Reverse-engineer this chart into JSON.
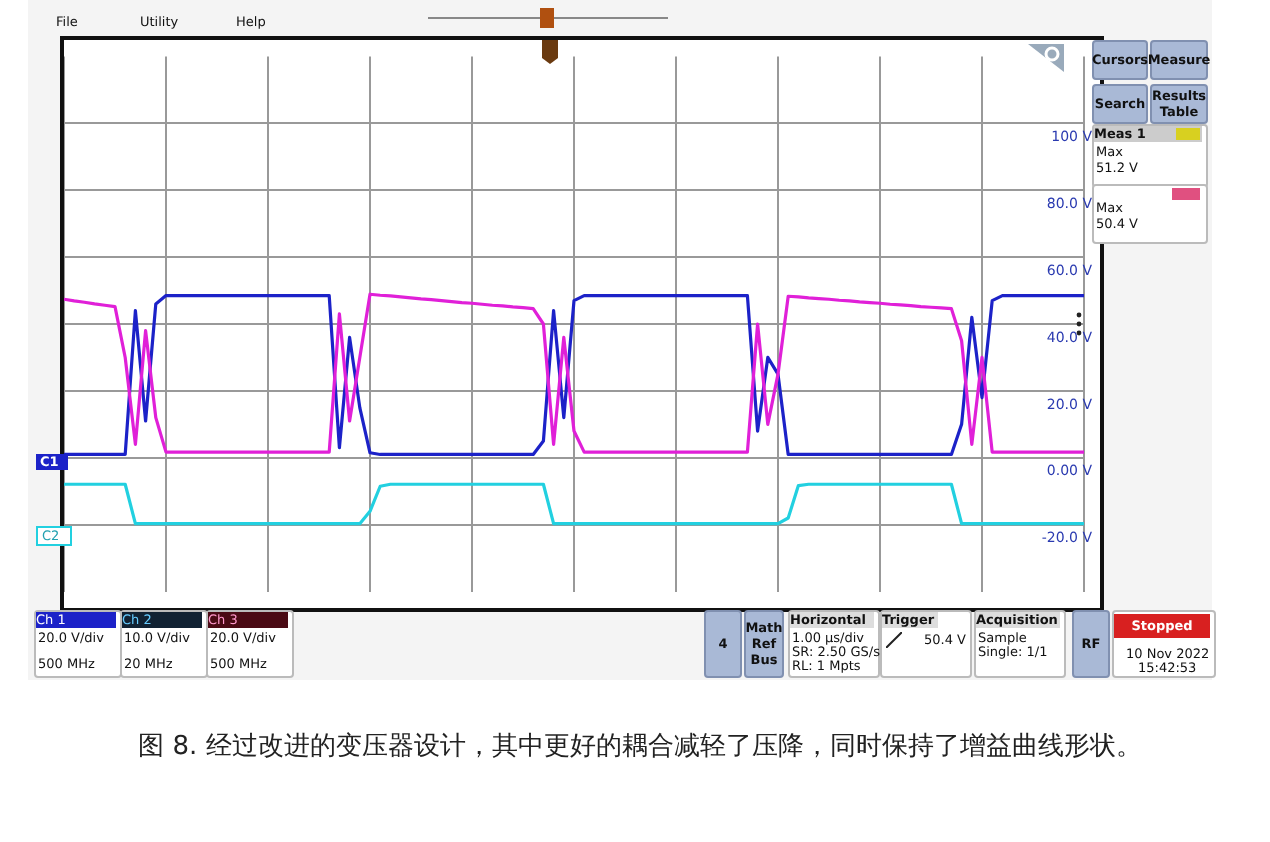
{
  "chart_data": {
    "type": "line",
    "title": "图 8. 经过改进的变压器设计，其中更好的耦合减轻了压降，同时保持了增益曲线形状。",
    "categories": [
      null,
      null,
      null,
      null,
      null,
      null,
      null,
      null,
      null,
      null,
      null,
      null,
      null,
      null,
      null,
      null,
      null,
      null,
      null,
      null,
      null,
      null,
      null,
      null,
      null,
      null,
      null,
      null,
      null,
      null,
      null,
      null,
      null,
      null,
      null,
      null,
      null,
      null,
      null,
      null,
      null,
      null,
      null,
      null,
      null,
      null,
      null,
      null,
      null,
      null,
      null,
      null,
      null,
      null,
      null,
      null,
      null,
      null,
      null,
      null,
      null,
      null,
      null,
      null,
      null,
      null,
      null,
      null,
      null,
      null,
      null,
      null,
      null,
      null,
      null,
      null,
      null,
      null,
      null,
      null,
      null,
      null,
      null,
      null,
      null,
      null,
      null,
      null,
      null,
      null,
      null,
      null,
      null,
      null,
      null,
      null,
      null,
      null,
      null,
      null,
      null
    ],
    "series": [
      {
        "color": "#e020d8",
        "values": [
          47.4,
          46.9,
          46.5,
          46,
          45.6,
          45.2,
          30,
          4,
          38,
          12,
          1.7,
          1.7,
          1.7,
          1.7,
          1.7,
          1.7,
          1.7,
          1.7,
          1.7,
          1.7,
          1.7,
          1.7,
          1.7,
          1.7,
          1.7,
          1.7,
          1.7,
          43,
          11,
          30,
          48.9,
          48.6,
          48.4,
          48.1,
          47.8,
          47.5,
          47.3,
          47,
          46.7,
          46.4,
          46.2,
          45.9,
          45.6,
          45.4,
          45.1,
          44.9,
          44.6,
          40,
          4,
          36,
          8,
          1.7,
          1.7,
          1.7,
          1.7,
          1.7,
          1.7,
          1.7,
          1.7,
          1.7,
          1.7,
          1.7,
          1.7,
          1.7,
          1.7,
          1.7,
          1.7,
          1.7,
          40,
          10,
          25,
          48.3,
          48.1,
          47.8,
          47.6,
          47.4,
          47.1,
          46.9,
          46.6,
          46.4,
          46.2,
          45.9,
          45.7,
          45.5,
          45.2,
          45,
          44.8,
          44.6,
          35,
          4,
          30,
          1.7,
          1.7,
          1.7,
          1.7,
          1.7,
          1.7,
          1.7,
          1.7,
          1.7,
          1.7
        ]
      },
      {
        "color": "#1c22c8",
        "values": [
          1,
          1,
          1,
          1,
          1,
          1,
          1,
          44,
          11,
          46,
          48.5,
          48.5,
          48.5,
          48.5,
          48.5,
          48.5,
          48.5,
          48.5,
          48.5,
          48.5,
          48.5,
          48.5,
          48.5,
          48.5,
          48.5,
          48.5,
          48.5,
          3,
          36,
          15,
          1.5,
          1,
          1,
          1,
          1,
          1,
          1,
          1,
          1,
          1,
          1,
          1,
          1,
          1,
          1,
          1,
          1,
          5,
          44,
          12,
          47,
          48.5,
          48.5,
          48.5,
          48.5,
          48.5,
          48.5,
          48.5,
          48.5,
          48.5,
          48.5,
          48.5,
          48.5,
          48.5,
          48.5,
          48.5,
          48.5,
          48.5,
          8,
          30,
          25,
          1,
          1,
          1,
          1,
          1,
          1,
          1,
          1,
          1,
          1,
          1,
          1,
          1,
          1,
          1,
          1,
          1,
          10,
          42,
          18,
          47,
          48.5,
          48.5,
          48.5,
          48.5,
          48.5,
          48.5,
          48.5,
          48.5,
          48.5
        ]
      },
      {
        "color": "#22d0e0",
        "values": [
          -7.9,
          -7.9,
          -7.9,
          -7.9,
          -7.9,
          -7.9,
          -7.9,
          -19.7,
          -19.7,
          -19.7,
          -19.7,
          -19.7,
          -19.7,
          -19.7,
          -19.7,
          -19.7,
          -19.7,
          -19.7,
          -19.7,
          -19.7,
          -19.7,
          -19.7,
          -19.7,
          -19.7,
          -19.7,
          -19.7,
          -19.7,
          -19.7,
          -19.7,
          -19.7,
          -16,
          -8.5,
          -7.9,
          -7.9,
          -7.9,
          -7.9,
          -7.9,
          -7.9,
          -7.9,
          -7.9,
          -7.9,
          -7.9,
          -7.9,
          -7.9,
          -7.9,
          -7.9,
          -7.9,
          -7.9,
          -19.7,
          -19.7,
          -19.7,
          -19.7,
          -19.7,
          -19.7,
          -19.7,
          -19.7,
          -19.7,
          -19.7,
          -19.7,
          -19.7,
          -19.7,
          -19.7,
          -19.7,
          -19.7,
          -19.7,
          -19.7,
          -19.7,
          -19.7,
          -19.7,
          -19.7,
          -19.7,
          -18,
          -8.3,
          -7.9,
          -7.9,
          -7.9,
          -7.9,
          -7.9,
          -7.9,
          -7.9,
          -7.9,
          -7.9,
          -7.9,
          -7.9,
          -7.9,
          -7.9,
          -7.9,
          -7.9,
          -19.7,
          -19.7,
          -19.7,
          -19.7,
          -19.7,
          -19.7,
          -19.7,
          -19.7,
          -19.7,
          -19.7,
          -19.7,
          -19.7,
          -19.7
        ]
      }
    ],
    "ylim": [
      -40,
      120
    ],
    "yticks": [
      {
        "value": -20,
        "label": "-20.0 V"
      },
      {
        "value": 0,
        "label": "0.00 V"
      },
      {
        "value": 20,
        "label": "20.0 V"
      },
      {
        "value": 40,
        "label": "40.0 V"
      },
      {
        "value": 60,
        "label": "60.0 V"
      },
      {
        "value": 80,
        "label": "80.0 V"
      },
      {
        "value": 100,
        "label": "100 V"
      }
    ],
    "grid": true,
    "legend": false,
    "marker": "none",
    "line_style": "solid",
    "tick_labels": "y",
    "annotations": [
      "File",
      "Utility",
      "Help",
      "C1",
      "C2",
      "Cursors",
      "Measure",
      "Search",
      "Results Table",
      "Meas 1",
      "Max",
      "51.2 V",
      "Max",
      "50.4 V",
      "Ch 1",
      "20.0 V/div",
      "500 MHz",
      "Ch 2",
      "10.0 V/div",
      "20 MHz",
      "Ch 3",
      "20.0 V/div",
      "500 MHz",
      "4",
      "Math Ref Bus",
      "Horizontal",
      "1.00 µs/div",
      "SR: 2.50 GS/s",
      "RL: 1 Mpts",
      "Trigger",
      "50.4 V",
      "Acquisition",
      "Sample",
      "Single: 1/1",
      "RF",
      "Stopped",
      "10 Nov 2022",
      "15:42:53"
    ]
  }
}
